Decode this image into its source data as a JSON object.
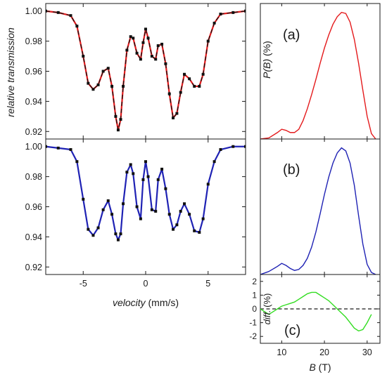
{
  "chart_data": [
    {
      "id": "moss-top",
      "type": "scatter",
      "ylabel": "relative transmission",
      "xlim": [
        -8,
        8
      ],
      "ylim": [
        0.915,
        1.005
      ],
      "x_ticks": [
        -5,
        0,
        5
      ],
      "y_ticks": [
        0.92,
        0.94,
        0.96,
        0.98,
        1.0
      ],
      "y_tick_labels": [
        "0.92",
        "0.94",
        "0.96",
        "0.98",
        "1.00"
      ],
      "series": [
        {
          "marker_color": "#111111",
          "fit_color": "#e41a1c",
          "fit_style": "solid + dashed black overlay",
          "x": [
            -8,
            -7,
            -6,
            -5.5,
            -5,
            -4.6,
            -4.2,
            -3.8,
            -3.4,
            -3.0,
            -2.7,
            -2.4,
            -2.2,
            -2.0,
            -1.8,
            -1.5,
            -1.2,
            -1.0,
            -0.7,
            -0.4,
            -0.2,
            0.0,
            0.2,
            0.5,
            0.8,
            1.0,
            1.3,
            1.6,
            1.9,
            2.2,
            2.5,
            2.8,
            3.1,
            3.5,
            3.9,
            4.3,
            4.6,
            5.0,
            5.5,
            6.0,
            7.0,
            8.0
          ],
          "y": [
            1.0,
            0.999,
            0.997,
            0.99,
            0.97,
            0.952,
            0.948,
            0.951,
            0.96,
            0.962,
            0.95,
            0.93,
            0.921,
            0.928,
            0.95,
            0.974,
            0.983,
            0.982,
            0.972,
            0.968,
            0.979,
            0.988,
            0.982,
            0.97,
            0.968,
            0.977,
            0.978,
            0.965,
            0.945,
            0.929,
            0.932,
            0.946,
            0.958,
            0.955,
            0.95,
            0.95,
            0.958,
            0.98,
            0.992,
            0.998,
            0.999,
            1.0
          ]
        }
      ]
    },
    {
      "id": "moss-bottom",
      "type": "scatter",
      "xlabel": "velocity (mm/s)",
      "xlim": [
        -8,
        8
      ],
      "ylim": [
        0.915,
        1.005
      ],
      "x_ticks": [
        -5,
        0,
        5
      ],
      "y_ticks": [
        0.92,
        0.94,
        0.96,
        0.98,
        1.0
      ],
      "y_tick_labels": [
        "0.92",
        "0.94",
        "0.96",
        "0.98",
        "1.00"
      ],
      "series": [
        {
          "marker_color": "#111111",
          "fit_color": "#1f22b4",
          "x": [
            -8,
            -7,
            -6,
            -5.5,
            -5,
            -4.6,
            -4.2,
            -3.8,
            -3.4,
            -3.0,
            -2.7,
            -2.4,
            -2.2,
            -2.0,
            -1.8,
            -1.5,
            -1.2,
            -1.0,
            -0.7,
            -0.4,
            -0.2,
            0.0,
            0.2,
            0.5,
            0.8,
            1.0,
            1.3,
            1.6,
            1.9,
            2.2,
            2.5,
            2.8,
            3.1,
            3.5,
            3.9,
            4.3,
            4.6,
            5.0,
            5.5,
            6.0,
            7.0,
            8.0
          ],
          "y": [
            1.0,
            0.999,
            0.998,
            0.99,
            0.965,
            0.945,
            0.941,
            0.946,
            0.958,
            0.964,
            0.955,
            0.942,
            0.938,
            0.942,
            0.962,
            0.983,
            0.988,
            0.982,
            0.96,
            0.952,
            0.978,
            0.99,
            0.98,
            0.958,
            0.957,
            0.978,
            0.985,
            0.972,
            0.955,
            0.945,
            0.948,
            0.957,
            0.962,
            0.955,
            0.944,
            0.943,
            0.952,
            0.975,
            0.99,
            0.998,
            1.0,
            1.0
          ]
        }
      ]
    },
    {
      "id": "pb-a",
      "type": "line",
      "panel_label": "(a)",
      "ylabel": "P(B) (%)",
      "xlim": [
        5,
        33
      ],
      "series": [
        {
          "color": "#e41a1c",
          "x": [
            5,
            7,
            9,
            10,
            11,
            12,
            13,
            14,
            15,
            16,
            17,
            18,
            19,
            20,
            21,
            22,
            23,
            24,
            25,
            26,
            27,
            28,
            29,
            30,
            31,
            32
          ],
          "y": [
            0.0,
            0.1,
            0.6,
            0.9,
            0.8,
            0.6,
            0.6,
            0.9,
            1.7,
            2.8,
            4.1,
            5.5,
            7.0,
            8.4,
            9.6,
            10.6,
            11.3,
            11.7,
            11.6,
            10.8,
            9.2,
            7.0,
            4.5,
            2.1,
            0.5,
            0.0
          ]
        }
      ]
    },
    {
      "id": "pb-b",
      "type": "line",
      "panel_label": "(b)",
      "xlim": [
        5,
        33
      ],
      "series": [
        {
          "color": "#1f22b4",
          "x": [
            5,
            7,
            9,
            10,
            11,
            12,
            13,
            14,
            15,
            16,
            17,
            18,
            19,
            20,
            21,
            22,
            23,
            24,
            25,
            26,
            27,
            28,
            29,
            30,
            31,
            32
          ],
          "y": [
            0.0,
            0.3,
            0.8,
            1.1,
            0.9,
            0.6,
            0.4,
            0.5,
            0.9,
            1.6,
            2.7,
            4.2,
            6.0,
            7.9,
            9.6,
            11.0,
            12.0,
            12.5,
            12.2,
            11.0,
            8.8,
            5.8,
            3.0,
            1.0,
            0.2,
            0.0
          ]
        }
      ]
    },
    {
      "id": "diff-c",
      "type": "line",
      "panel_label": "(c)",
      "xlabel": "B (T)",
      "ylabel": "diff. (%)",
      "xlim": [
        5,
        33
      ],
      "ylim": [
        -2.5,
        2.5
      ],
      "x_ticks": [
        10,
        20,
        30
      ],
      "y_ticks": [
        -2,
        -1,
        0,
        1,
        2
      ],
      "y_tick_labels": [
        "-2",
        "-1",
        "0",
        "1",
        "2"
      ],
      "zero_line": "dashed",
      "series": [
        {
          "color": "#33dd22",
          "x": [
            5,
            6,
            7,
            8,
            9,
            10,
            11,
            12,
            13,
            14,
            15,
            16,
            17,
            18,
            19,
            20,
            21,
            22,
            23,
            24,
            25,
            26,
            27,
            28,
            29,
            30,
            31
          ],
          "y": [
            0.0,
            -0.2,
            -0.4,
            -0.2,
            0.0,
            0.2,
            0.3,
            0.4,
            0.5,
            0.7,
            0.9,
            1.1,
            1.2,
            1.2,
            1.0,
            0.8,
            0.6,
            0.3,
            0.0,
            -0.3,
            -0.6,
            -1.0,
            -1.4,
            -1.6,
            -1.5,
            -1.0,
            -0.4
          ]
        }
      ]
    }
  ]
}
